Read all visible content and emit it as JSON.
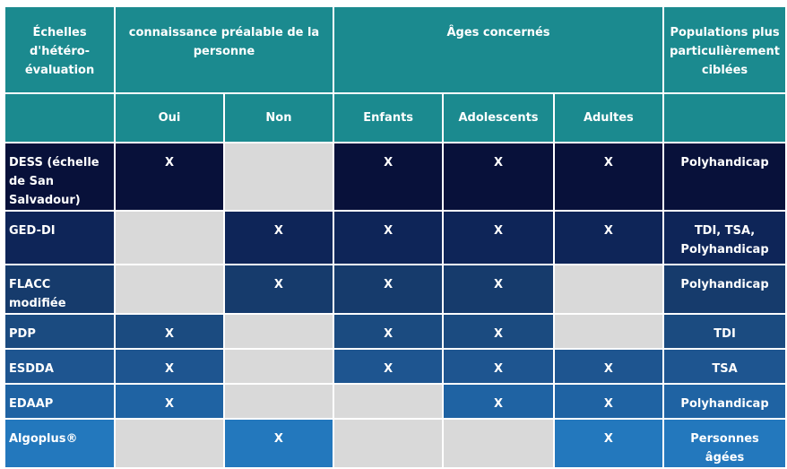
{
  "headers": {
    "scale": "Échelles d'hétéro-évaluation",
    "prior_knowledge": "connaissance préalable de la personne",
    "ages": "Âges concernés",
    "populations": "Populations plus particulièrement ciblées",
    "oui": "Oui",
    "non": "Non",
    "enfants": "Enfants",
    "adolescents": "Adolescents",
    "adultes": "Adultes"
  },
  "colors": {
    "header": "#1b8a8f",
    "empty": "#d9d9d9",
    "rows": [
      "#08113a",
      "#0e2558",
      "#163b6c",
      "#1b4b80",
      "#1e5590",
      "#1f63a3",
      "#2378bd"
    ]
  },
  "rows": [
    {
      "name": "DESS (échelle de San Salvadour)",
      "oui": "X",
      "non": "",
      "enfants": "X",
      "adolescents": "X",
      "adultes": "X",
      "population": "Polyhandicap"
    },
    {
      "name": "GED-DI",
      "oui": "",
      "non": "X",
      "enfants": "X",
      "adolescents": "X",
      "adultes": "X",
      "population": "TDI, TSA, Polyhandicap"
    },
    {
      "name": "FLACC modifiée",
      "oui": "",
      "non": "X",
      "enfants": "X",
      "adolescents": "X",
      "adultes": "",
      "population": "Polyhandicap"
    },
    {
      "name": "PDP",
      "oui": "X",
      "non": "",
      "enfants": "X",
      "adolescents": "X",
      "adultes": "",
      "population": "TDI"
    },
    {
      "name": "ESDDA",
      "oui": "X",
      "non": "",
      "enfants": "X",
      "adolescents": "X",
      "adultes": "X",
      "population": "TSA"
    },
    {
      "name": "EDAAP",
      "oui": "X",
      "non": "",
      "enfants": "",
      "adolescents": "X",
      "adultes": "X",
      "population": "Polyhandicap"
    },
    {
      "name": "Algoplus®",
      "oui": "",
      "non": "X",
      "enfants": "",
      "adolescents": "",
      "adultes": "X",
      "population": "Personnes âgées"
    }
  ]
}
